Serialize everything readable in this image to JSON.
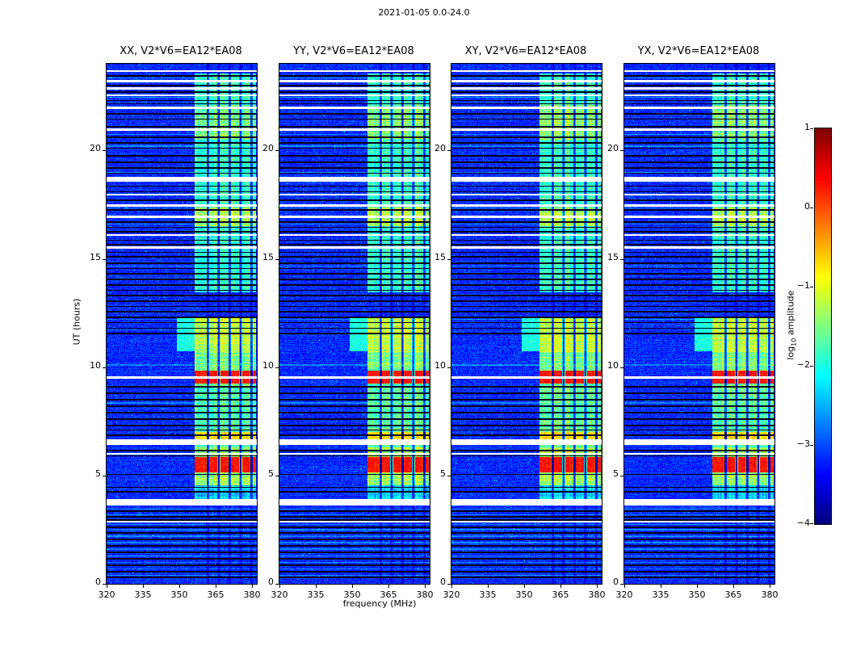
{
  "colorbar": {
    "label_prefix": "log",
    "label_sub": "10",
    "label_suffix": " amplitude",
    "tick_labels": [
      "1",
      "0",
      "−1",
      "−2",
      "−3",
      "−4"
    ]
  },
  "chart_data": {
    "type": "heatmap",
    "title": "2021-01-05 0.0-24.0",
    "xlabel": "frequency (MHz)",
    "ylabel": "UT (hours)",
    "value_label": "log10 amplitude",
    "colormap": "jet",
    "legend_position": "right-colorbar",
    "x_range": [
      320,
      382
    ],
    "y_range": [
      0,
      24
    ],
    "value_range": [
      -4,
      1
    ],
    "x_ticks": [
      320,
      335,
      350,
      365,
      380
    ],
    "x_tick_labels": [
      "320",
      "335",
      "350",
      "365",
      "380"
    ],
    "y_ticks": [
      0,
      5,
      10,
      15,
      20
    ],
    "y_tick_labels": [
      "0",
      "5",
      "10",
      "15",
      "20"
    ],
    "colorbar_ticks": [
      1,
      0,
      -1,
      -2,
      -3,
      -4
    ],
    "panels": [
      {
        "label": "XX, V2*V6=EA12*EA08",
        "seed": 11
      },
      {
        "label": "YY, V2*V6=EA12*EA08",
        "seed": 22
      },
      {
        "label": "XY, V2*V6=EA12*EA08",
        "seed": 33
      },
      {
        "label": "YX, V2*V6=EA12*EA08",
        "seed": 44
      }
    ],
    "background_noise": {
      "base": -3.45,
      "spread": 0.55,
      "speckle_prob": 0.03,
      "speckle_boost": 0.8
    },
    "rfi_band": {
      "freq_min": 356.5,
      "freq_max": 381.5,
      "channel_gaps": [
        361.8,
        366.3,
        370.8,
        375.3,
        379.8
      ],
      "gap_width": 1.2,
      "segments": [
        {
          "ut": [
            3.9,
            4.55
          ],
          "level": -2.3
        },
        {
          "ut": [
            4.55,
            5.15
          ],
          "level": -1.3
        },
        {
          "ut": [
            5.85,
            6.3
          ],
          "level": -1.3
        },
        {
          "ut": [
            6.3,
            9.25
          ],
          "level": -1.65
        },
        {
          "ut": [
            9.85,
            10.7
          ],
          "level": -1.5
        },
        {
          "ut": [
            10.7,
            12.35
          ],
          "level": -1.15
        },
        {
          "ut": [
            13.45,
            16.5
          ],
          "level": -1.85
        },
        {
          "ut": [
            16.5,
            17.35
          ],
          "level": -1.25
        },
        {
          "ut": [
            17.35,
            20.5
          ],
          "level": -1.85
        },
        {
          "ut": [
            20.5,
            22.1
          ],
          "level": -1.45
        },
        {
          "ut": [
            22.1,
            23.55
          ],
          "level": -1.85
        }
      ],
      "bursts": [
        {
          "ut": [
            5.15,
            5.85
          ],
          "level": 0.3
        },
        {
          "ut": [
            9.25,
            9.82
          ],
          "level": 0.3
        },
        {
          "ut": [
            6.66,
            7.02
          ],
          "level": -0.7
        }
      ],
      "side_blob": {
        "ut": [
          10.75,
          12.35
        ],
        "freq": [
          349,
          356.5
        ],
        "level": -2.0
      }
    },
    "time_features": {
      "white_gaps": [
        [
          23.62,
          23.72
        ],
        [
          23.14,
          23.24
        ],
        [
          22.82,
          22.92
        ],
        [
          22.5,
          22.6
        ],
        [
          21.9,
          22.02
        ],
        [
          20.92,
          21.0
        ],
        [
          18.55,
          18.8
        ],
        [
          17.92,
          18.0
        ],
        [
          17.42,
          17.52
        ],
        [
          16.9,
          16.98
        ],
        [
          16.06,
          16.14
        ],
        [
          15.48,
          15.56
        ],
        [
          9.48,
          9.56
        ],
        [
          6.4,
          6.66
        ],
        [
          5.95,
          6.02
        ],
        [
          3.6,
          3.9
        ],
        [
          2.82,
          2.9
        ]
      ],
      "black_lines": [
        23.45,
        23.0,
        22.7,
        22.3,
        22.15,
        21.7,
        21.45,
        21.1,
        20.6,
        20.35,
        20.1,
        19.75,
        19.45,
        19.2,
        18.95,
        18.35,
        18.1,
        17.7,
        17.25,
        16.7,
        16.45,
        16.25,
        15.85,
        15.65,
        15.3,
        15.1,
        14.8,
        14.55,
        14.3,
        14.05,
        13.8,
        13.55,
        13.3,
        13.05,
        12.8,
        12.55,
        12.3,
        12.05,
        11.8,
        11.55,
        9.1,
        8.8,
        8.5,
        8.2,
        7.9,
        7.6,
        7.3,
        7.1,
        6.85,
        6.15,
        5.9,
        5.05,
        4.45,
        4.25,
        3.35,
        3.1,
        2.95,
        2.6,
        2.35,
        2.05,
        1.75,
        1.45,
        1.15,
        0.85,
        0.55,
        0.3
      ],
      "bright_lines": [
        23.35,
        22.45,
        20.75,
        20.2,
        19.0,
        17.35,
        16.6,
        14.65,
        12.2,
        10.1,
        8.35,
        3.45,
        3.2,
        2.75,
        2.5,
        2.2,
        1.9,
        1.6,
        1.3,
        1.0,
        0.7,
        0.4
      ]
    }
  }
}
